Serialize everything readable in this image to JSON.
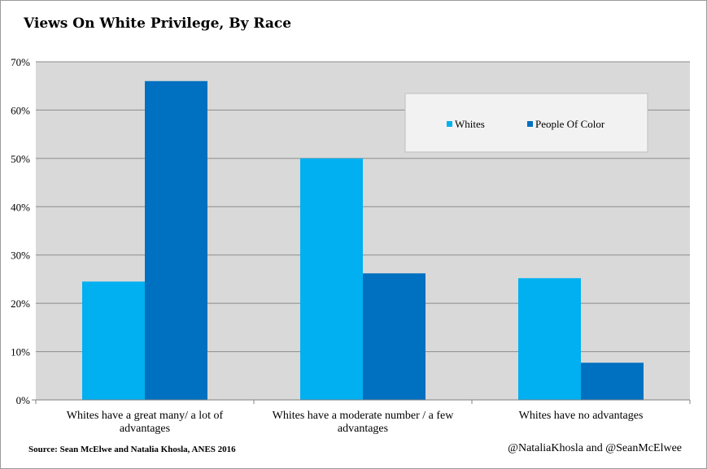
{
  "title": "Views On White Privilege, By Race",
  "source": "Source: Sean McElwe and Natalia Khosla, ANES 2016",
  "credit": "@NataliaKhosla and @SeanMcElwee",
  "colors": {
    "plot_bg": "#d9d9d9",
    "grid": "#8c8c8c",
    "whites": "#00b0f0",
    "poc": "#0070c0"
  },
  "chart_data": {
    "type": "bar",
    "categories": [
      [
        "Whites have a great many/ a lot of",
        "advantages"
      ],
      [
        "Whites have a moderate number / a few",
        "advantages"
      ],
      [
        "Whites have no advantages"
      ]
    ],
    "series": [
      {
        "name": "Whites",
        "values": [
          0.245,
          0.5,
          0.252
        ]
      },
      {
        "name": "People Of Color",
        "values": [
          0.66,
          0.262,
          0.077
        ]
      }
    ],
    "yticks": [
      "0%",
      "10%",
      "20%",
      "30%",
      "40%",
      "50%",
      "60%",
      "70%"
    ],
    "ylim": [
      0,
      0.7
    ],
    "grid": true,
    "legend": "top-right"
  }
}
